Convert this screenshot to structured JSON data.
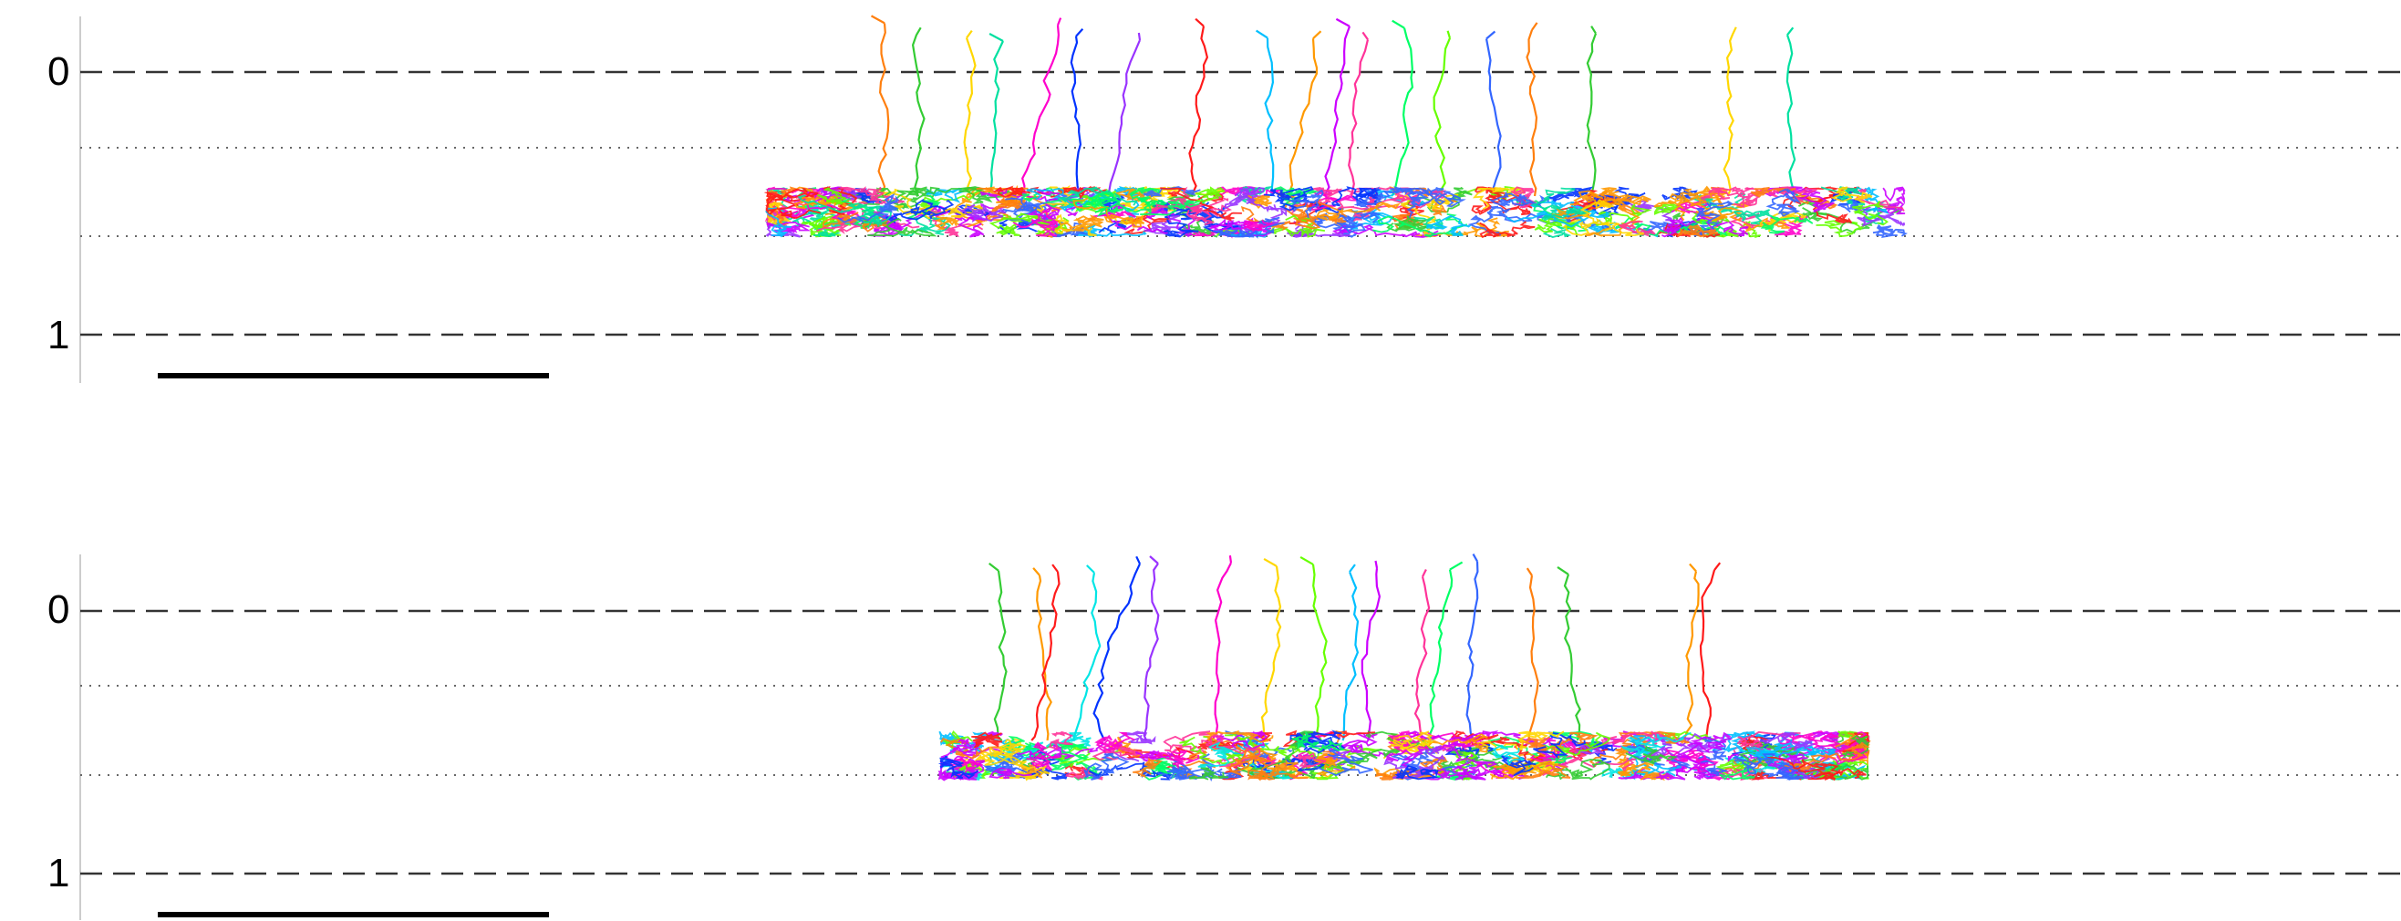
{
  "panels": [
    {
      "id": "top",
      "axis": {
        "tick_labels": [
          "0",
          "1"
        ]
      },
      "colors": [
        "#ff7f0e",
        "#33cc33",
        "#ffd700",
        "#00e0a0",
        "#ff00cc",
        "#0033ff",
        "#9933ff",
        "#ff1a1a",
        "#00bfff",
        "#ff9900",
        "#cc00ff",
        "#ff3399",
        "#00ff66",
        "#66ff00",
        "#3366ff"
      ]
    },
    {
      "id": "bottom",
      "axis": {
        "tick_labels": [
          "0",
          "1"
        ]
      },
      "colors": [
        "#33cc33",
        "#ff9900",
        "#ff1a1a",
        "#00e5e5",
        "#0033ff",
        "#9933ff",
        "#ff00cc",
        "#ffd700",
        "#66ff00",
        "#00bfff",
        "#cc00ff",
        "#ff3399",
        "#00ff66",
        "#3366ff",
        "#ff7f0e"
      ]
    }
  ]
}
